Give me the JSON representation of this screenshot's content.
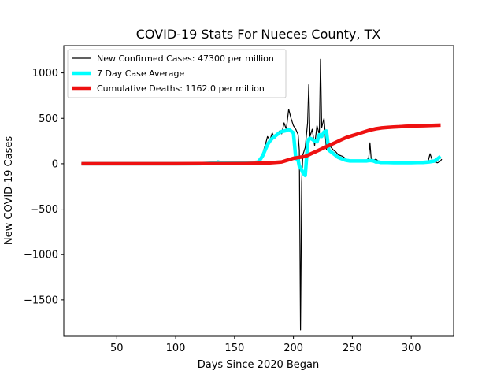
{
  "chart_data": {
    "type": "line",
    "title": "COVID-19 Stats For Nueces County, TX",
    "xlabel": "Days Since 2020 Began",
    "ylabel": "New COVID-19 Cases",
    "xlim": [
      5,
      336
    ],
    "ylim": [
      -1900,
      1300
    ],
    "xticks": [
      50,
      100,
      150,
      200,
      250,
      300
    ],
    "yticks": [
      -1500,
      -1000,
      -500,
      0,
      500,
      1000
    ],
    "xtick_labels": [
      "50",
      "100",
      "150",
      "200",
      "250",
      "300"
    ],
    "ytick_labels": [
      "−1500",
      "−1000",
      "−500",
      "0",
      "500",
      "1000"
    ],
    "grid": false,
    "legend_position": "top-left",
    "series": [
      {
        "name": "New Confirmed Cases: 47300 per million",
        "color": "#000000",
        "style": "thin",
        "x": [
          20,
          40,
          60,
          80,
          100,
          110,
          120,
          130,
          134,
          136,
          138,
          140,
          150,
          160,
          165,
          170,
          172,
          174,
          176,
          178,
          180,
          182,
          184,
          186,
          188,
          190,
          192,
          194,
          196,
          198,
          200,
          202,
          204,
          205,
          206,
          207,
          208,
          210,
          212,
          213,
          214,
          216,
          218,
          220,
          222,
          223,
          224,
          226,
          228,
          230,
          232,
          234,
          236,
          238,
          240,
          242,
          244,
          246,
          248,
          250,
          252,
          254,
          256,
          258,
          260,
          262,
          264,
          265,
          266,
          268,
          270,
          272,
          274,
          276,
          278,
          280,
          282,
          284,
          286,
          288,
          290,
          292,
          294,
          296,
          298,
          300,
          302,
          304,
          306,
          308,
          310,
          312,
          314,
          316,
          318,
          320,
          322,
          324,
          326
        ],
        "y": [
          0,
          0,
          0,
          0,
          0,
          0,
          0,
          5,
          12,
          20,
          10,
          3,
          5,
          8,
          10,
          20,
          60,
          120,
          200,
          300,
          260,
          340,
          280,
          310,
          360,
          330,
          450,
          380,
          600,
          500,
          420,
          380,
          320,
          150,
          -1830,
          -200,
          100,
          180,
          450,
          870,
          300,
          380,
          200,
          420,
          320,
          1150,
          400,
          500,
          160,
          220,
          180,
          150,
          130,
          100,
          90,
          80,
          60,
          40,
          40,
          30,
          30,
          25,
          20,
          30,
          30,
          30,
          70,
          230,
          60,
          40,
          50,
          30,
          20,
          15,
          20,
          15,
          20,
          10,
          10,
          10,
          10,
          10,
          10,
          10,
          10,
          10,
          10,
          10,
          10,
          10,
          20,
          10,
          10,
          110,
          30,
          30,
          10,
          20,
          50
        ]
      },
      {
        "name": "7 Day Case Average",
        "color": "#00ffff",
        "style": "thick",
        "x": [
          20,
          40,
          60,
          80,
          100,
          110,
          120,
          130,
          134,
          136,
          138,
          140,
          150,
          160,
          165,
          170,
          172,
          174,
          176,
          178,
          180,
          182,
          184,
          186,
          188,
          190,
          192,
          194,
          196,
          198,
          200,
          202,
          204,
          205,
          206,
          207,
          208,
          210,
          212,
          213,
          214,
          216,
          218,
          220,
          222,
          224,
          226,
          228,
          230,
          232,
          234,
          236,
          238,
          240,
          242,
          244,
          246,
          248,
          250,
          252,
          254,
          256,
          258,
          260,
          262,
          264,
          266,
          268,
          270,
          272,
          274,
          276,
          278,
          280,
          285,
          290,
          295,
          300,
          305,
          310,
          315,
          320,
          325
        ],
        "y": [
          0,
          0,
          0,
          0,
          0,
          0,
          0,
          5,
          12,
          20,
          12,
          5,
          5,
          8,
          10,
          20,
          50,
          90,
          150,
          210,
          250,
          280,
          300,
          320,
          340,
          355,
          360,
          365,
          380,
          360,
          340,
          60,
          40,
          -30,
          -40,
          -70,
          -100,
          -130,
          220,
          270,
          280,
          270,
          250,
          240,
          320,
          300,
          350,
          360,
          150,
          130,
          110,
          90,
          70,
          60,
          50,
          40,
          35,
          30,
          30,
          30,
          30,
          30,
          30,
          30,
          30,
          35,
          35,
          30,
          20,
          20,
          15,
          15,
          15,
          15,
          12,
          12,
          12,
          12,
          15,
          15,
          20,
          30,
          80
        ]
      },
      {
        "name": "Cumulative Deaths: 1162.0 per million",
        "color": "#ee1111",
        "style": "thick",
        "x": [
          20,
          50,
          100,
          140,
          160,
          170,
          180,
          190,
          195,
          200,
          205,
          210,
          215,
          220,
          225,
          230,
          235,
          240,
          245,
          250,
          255,
          260,
          265,
          270,
          275,
          280,
          285,
          290,
          295,
          300,
          305,
          310,
          315,
          320,
          325
        ],
        "y": [
          0,
          0,
          0,
          2,
          3,
          5,
          10,
          20,
          40,
          60,
          70,
          80,
          110,
          140,
          170,
          200,
          230,
          260,
          290,
          310,
          330,
          350,
          370,
          385,
          395,
          400,
          405,
          408,
          412,
          415,
          417,
          419,
          421,
          423,
          425
        ]
      }
    ]
  }
}
